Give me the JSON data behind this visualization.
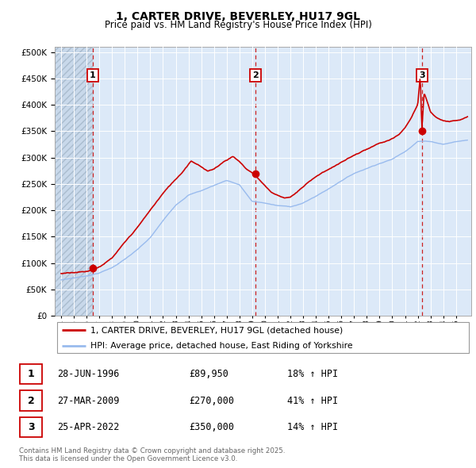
{
  "title": "1, CARTER DRIVE, BEVERLEY, HU17 9GL",
  "subtitle": "Price paid vs. HM Land Registry's House Price Index (HPI)",
  "legend_label_red": "1, CARTER DRIVE, BEVERLEY, HU17 9GL (detached house)",
  "legend_label_blue": "HPI: Average price, detached house, East Riding of Yorkshire",
  "transactions": [
    {
      "num": 1,
      "date_label": "28-JUN-1996",
      "date_x": 1996.49,
      "price": 89950,
      "pct": "18% ↑ HPI"
    },
    {
      "num": 2,
      "date_label": "27-MAR-2009",
      "date_x": 2009.23,
      "price": 270000,
      "pct": "41% ↑ HPI"
    },
    {
      "num": 3,
      "date_label": "25-APR-2022",
      "date_x": 2022.32,
      "price": 350000,
      "pct": "14% ↑ HPI"
    }
  ],
  "footer": "Contains HM Land Registry data © Crown copyright and database right 2025.\nThis data is licensed under the Open Government Licence v3.0.",
  "ylim": [
    0,
    510000
  ],
  "yticks": [
    0,
    50000,
    100000,
    150000,
    200000,
    250000,
    300000,
    350000,
    400000,
    450000,
    500000
  ],
  "xlim_start": 1993.5,
  "xlim_end": 2026.2,
  "bg_color": "#dce9f8",
  "hatch_color": "#c8d8ea",
  "grid_color": "#ffffff",
  "red_color": "#cc0000",
  "blue_color": "#99bbee",
  "dashed_red": "#cc2222"
}
